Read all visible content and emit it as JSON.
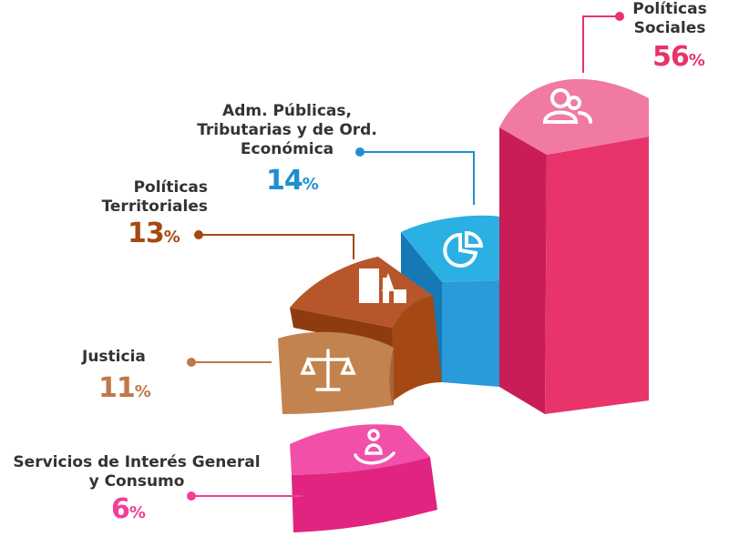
{
  "chart_data": {
    "type": "pie",
    "style": "3d-segmented-ring",
    "unit": "%",
    "categories": [
      "Políticas Sociales",
      "Adm. Públicas, Tributarias y de Ord. Económica",
      "Políticas Territoriales",
      "Justicia",
      "Servicios de Interés General y Consumo"
    ],
    "values": [
      56,
      14,
      13,
      11,
      6
    ],
    "slices": [
      {
        "label_lines": [
          "Políticas",
          "Sociales"
        ],
        "value": 56,
        "pct_text": "56",
        "color": "#e8336b",
        "icon": "people-icon"
      },
      {
        "label_lines": [
          "Adm. Públicas,",
          "Tributarias y de Ord.",
          "Económica"
        ],
        "value": 14,
        "pct_text": "14",
        "color": "#1e8fd0",
        "icon": "pie-chart-icon"
      },
      {
        "label_lines": [
          "Políticas",
          "Territoriales"
        ],
        "value": 13,
        "pct_text": "13",
        "color": "#a44913",
        "icon": "city-buildings-icon"
      },
      {
        "label_lines": [
          "Justicia"
        ],
        "value": 11,
        "pct_text": "11",
        "color": "#bf7848",
        "icon": "scales-icon"
      },
      {
        "label_lines": [
          "Servicios de Interés General",
          "y Consumo"
        ],
        "value": 6,
        "pct_text": "6",
        "color": "#f03f97",
        "icon": "hand-person-icon"
      }
    ],
    "percent_sign": "%",
    "colors": {
      "sociales": "#e8336b",
      "adm": "#1e8fd0",
      "territoriales": "#a44913",
      "justicia": "#bf7848",
      "servicios": "#f03f97"
    }
  }
}
